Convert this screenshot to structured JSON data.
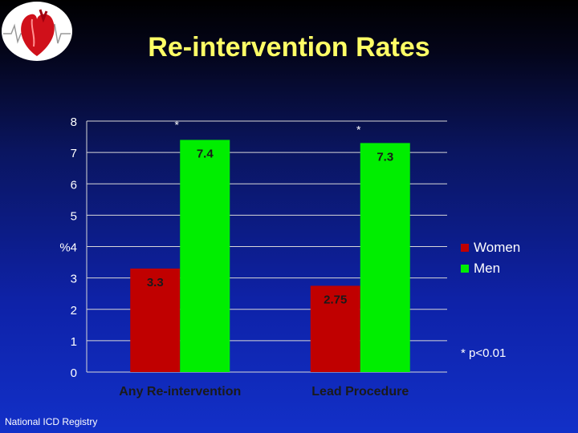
{
  "slide": {
    "title": "Re-intervention Rates",
    "footnote": "* p<0.01",
    "credit": "National ICD Registry",
    "logo_icon": "heart-ecg-logo-icon"
  },
  "chart_data": {
    "type": "bar",
    "title": "Re-intervention Rates",
    "ylabel": "%",
    "xlabel": "",
    "ylim": [
      0,
      8
    ],
    "yticks": [
      "0",
      "1",
      "2",
      "3",
      "%4",
      "5",
      "6",
      "7",
      "8"
    ],
    "grid": true,
    "legend_position": "right",
    "categories": [
      "Any Re-intervention",
      "Lead Procedure"
    ],
    "series": [
      {
        "name": "Women",
        "color": "#c00000",
        "values": [
          3.3,
          2.75
        ],
        "labels": [
          "3.3",
          "2.75"
        ]
      },
      {
        "name": "Men",
        "color": "#00ee00",
        "values": [
          7.4,
          7.3
        ],
        "labels": [
          "7.4",
          "7.3"
        ]
      }
    ],
    "annotations": [
      "*",
      "*"
    ]
  }
}
